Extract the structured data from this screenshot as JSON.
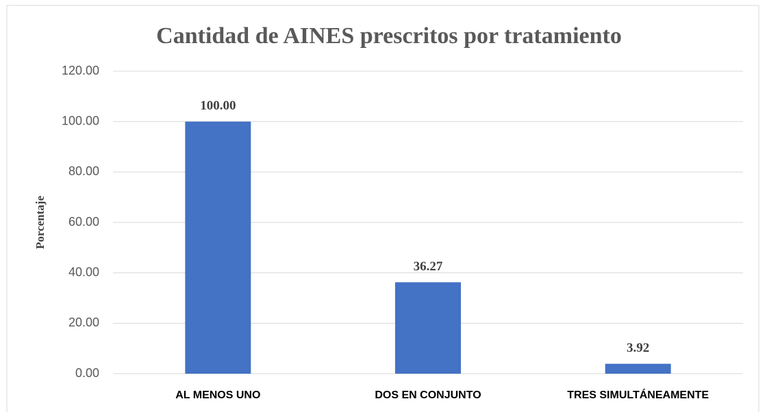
{
  "chart_data": {
    "type": "bar",
    "title": "Cantidad de AINES prescritos  por tratamiento",
    "y_label": "Porcentaje",
    "categories": [
      "AL MENOS UNO",
      "DOS EN CONJUNTO",
      "TRES SIMULTÁNEAMENTE"
    ],
    "values": [
      100,
      36.27,
      3.92
    ],
    "value_labels": [
      "100.00",
      "36.27",
      "3.92"
    ],
    "color": "#4472c4",
    "ylim": [
      0,
      120
    ],
    "yticks": [
      {
        "value": 0,
        "label": "0.00"
      },
      {
        "value": 20,
        "label": "20.00"
      },
      {
        "value": 40,
        "label": "40.00"
      },
      {
        "value": 60,
        "label": "60.00"
      },
      {
        "value": 80,
        "label": "80.00"
      },
      {
        "value": 100,
        "label": "100.00"
      },
      {
        "value": 120,
        "label": "120.00"
      }
    ],
    "grid": true
  }
}
